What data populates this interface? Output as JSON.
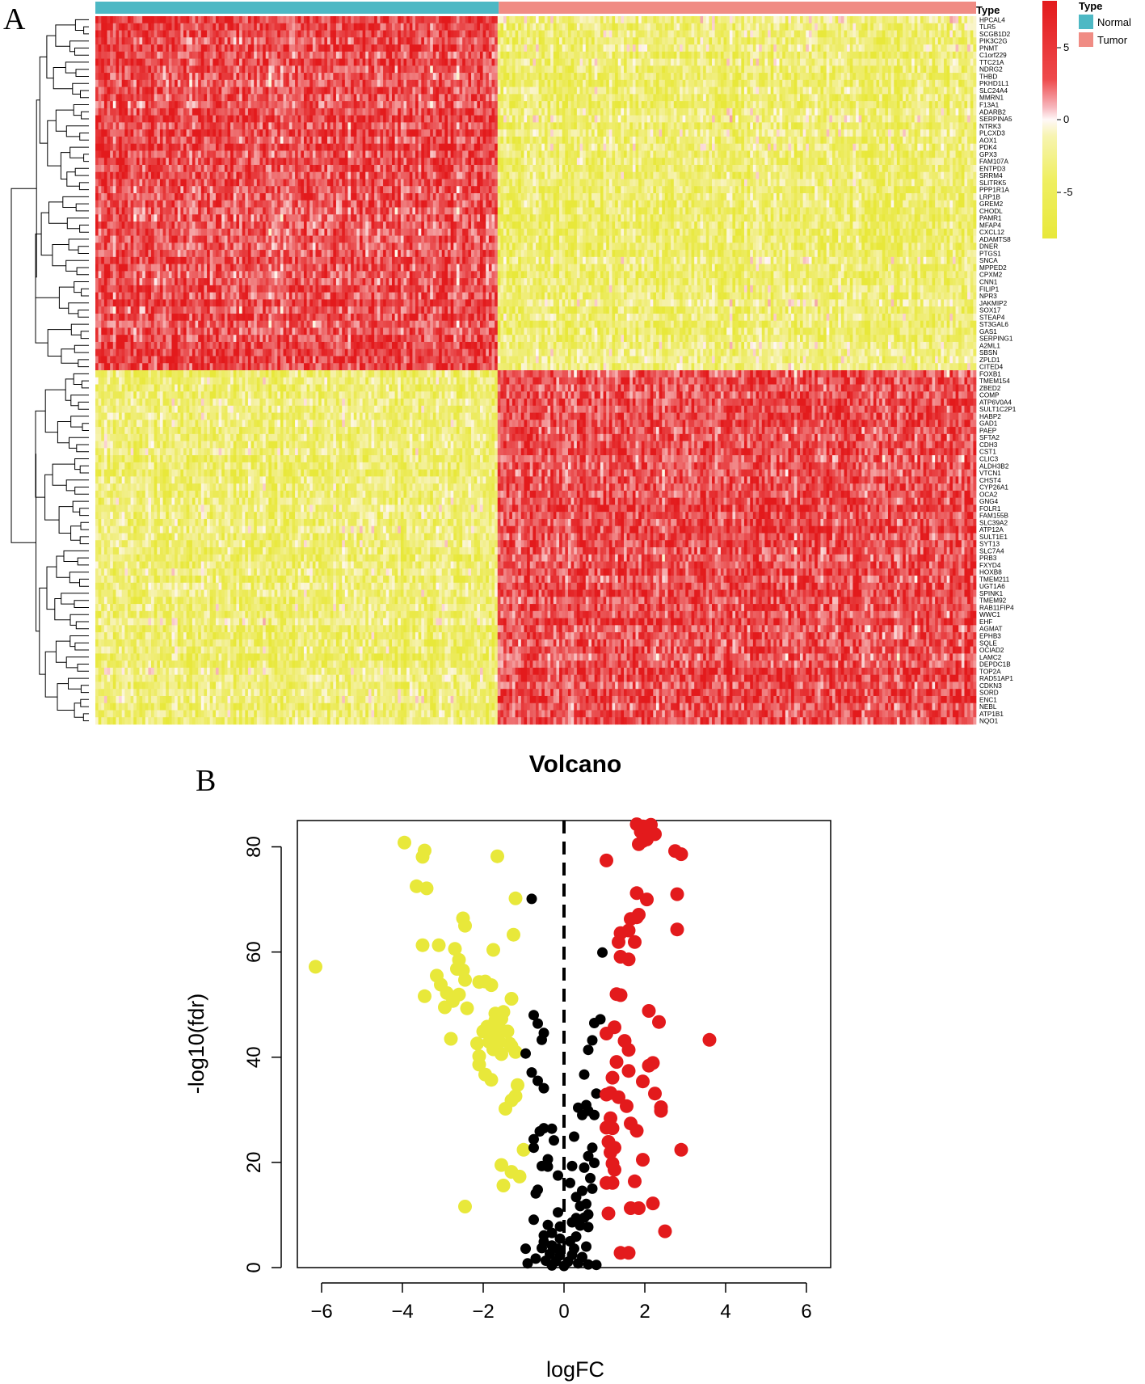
{
  "panels": {
    "a": "A",
    "b": "B"
  },
  "heatmap": {
    "annotation_title": "Type",
    "legend_title": "Type",
    "groups": [
      {
        "name": "Normal",
        "color": "#4DB8C4"
      },
      {
        "name": "Tumor",
        "color": "#F08C84"
      }
    ],
    "color_scale": {
      "min": -8,
      "max": 8,
      "ticks": [
        "5",
        "0",
        "-5"
      ],
      "low_color": "#E8E83A",
      "mid_color": "#FFF8F8",
      "high_color": "#E31A1C"
    },
    "sample_split_fraction": 0.458,
    "upregulated_in_normal": [
      "HPCAL4",
      "TLR5",
      "SCGB1D2",
      "PIK3C2G",
      "PNMT",
      "C1orf229",
      "TTC21A",
      "NDRG2",
      "THBD",
      "PKHD1L1",
      "SLC24A4",
      "MMRN1",
      "F13A1",
      "ADARB2",
      "SERPINA5",
      "NTRK3",
      "PLCXD3",
      "AOX1",
      "PDK4",
      "GPX3",
      "FAM107A",
      "ENTPD3",
      "SRRM4",
      "SLITRK5",
      "PPP1R1A",
      "LRP1B",
      "GREM2",
      "CHODL",
      "PAMR1",
      "MFAP4",
      "CXCL12",
      "ADAMTS8",
      "DNER",
      "PTGS1",
      "SNCA",
      "MPPED2",
      "CPXM2",
      "CNN1",
      "FILIP1",
      "NPR3",
      "JAKMIP2",
      "SOX17",
      "STEAP4",
      "ST3GAL6",
      "GAS1",
      "SERPING1",
      "A2ML1",
      "SBSN",
      "ZPLD1",
      "CITED4"
    ],
    "upregulated_in_tumor": [
      "FOXB1",
      "TMEM154",
      "ZBED2",
      "COMP",
      "ATP6V0A4",
      "SULT1C2P1",
      "HABP2",
      "GAD1",
      "PAEP",
      "SFTA2",
      "CDH3",
      "CST1",
      "CLIC3",
      "ALDH3B2",
      "VTCN1",
      "CHST4",
      "CYP26A1",
      "OCA2",
      "GNG4",
      "FOLR1",
      "FAM155B",
      "SLC39A2",
      "ATP12A",
      "SULT1E1",
      "SYT13",
      "SLC7A4",
      "PRB3",
      "FXYD4",
      "HOXB8",
      "TMEM211",
      "UGT1A6",
      "SPINK1",
      "TMEM92",
      "RAB11FIP4",
      "WWC1",
      "EHF",
      "AGMAT",
      "EPHB3",
      "SQLE",
      "OCIAD2",
      "LAMC2",
      "DEPDC1B",
      "TOP2A",
      "RAD51AP1",
      "CDKN3",
      "SORD",
      "ENC1",
      "NEBL",
      "ATP1B1",
      "NQO1"
    ]
  },
  "chart_data": {
    "type": "scatter",
    "title": "Volcano",
    "xlabel": "logFC",
    "ylabel": "-log10(fdr)",
    "xlim": [
      -6.6,
      6.6
    ],
    "ylim": [
      0,
      85
    ],
    "xticks": [
      -6,
      -4,
      -2,
      0,
      2,
      4,
      6
    ],
    "yticks": [
      0,
      20,
      40,
      60,
      80
    ],
    "cutoff_line_x": 0,
    "series": [
      {
        "name": "down",
        "color": "#E8E83A",
        "points": [
          [
            -6.15,
            57.2
          ],
          [
            -3.95,
            80.8
          ],
          [
            -3.45,
            79.3
          ],
          [
            -3.5,
            78.1
          ],
          [
            -1.65,
            78.2
          ],
          [
            -3.65,
            72.5
          ],
          [
            -3.4,
            72.1
          ],
          [
            -1.2,
            70.2
          ],
          [
            -2.5,
            66.4
          ],
          [
            -2.45,
            65.0
          ],
          [
            -1.25,
            63.3
          ],
          [
            -3.5,
            61.3
          ],
          [
            -3.1,
            61.3
          ],
          [
            -2.7,
            60.6
          ],
          [
            -1.75,
            60.4
          ],
          [
            -2.6,
            58.5
          ],
          [
            -2.65,
            56.8
          ],
          [
            -2.5,
            56.5
          ],
          [
            -3.15,
            55.5
          ],
          [
            -3.05,
            53.8
          ],
          [
            -2.9,
            52.2
          ],
          [
            -2.1,
            54.3
          ],
          [
            -1.95,
            54.4
          ],
          [
            -1.8,
            53.7
          ],
          [
            -2.45,
            54.7
          ],
          [
            -2.6,
            51.9
          ],
          [
            -2.75,
            50.7
          ],
          [
            -3.45,
            51.6
          ],
          [
            -2.95,
            49.5
          ],
          [
            -2.4,
            49.3
          ],
          [
            -1.7,
            48.3
          ],
          [
            -1.5,
            48.6
          ],
          [
            -1.3,
            51.1
          ],
          [
            -1.55,
            47.3
          ],
          [
            -1.7,
            47.0
          ],
          [
            -1.9,
            45.8
          ],
          [
            -2.0,
            44.9
          ],
          [
            -1.75,
            44.8
          ],
          [
            -1.55,
            45.1
          ],
          [
            -1.4,
            44.9
          ],
          [
            -2.8,
            43.5
          ],
          [
            -2.15,
            42.6
          ],
          [
            -1.85,
            42.9
          ],
          [
            -1.6,
            42.9
          ],
          [
            -1.35,
            42.6
          ],
          [
            -1.75,
            41.5
          ],
          [
            -1.55,
            40.6
          ],
          [
            -1.3,
            42.1
          ],
          [
            -1.2,
            41.0
          ],
          [
            -2.1,
            40.2
          ],
          [
            -2.1,
            38.6
          ],
          [
            -1.95,
            36.7
          ],
          [
            -1.8,
            35.7
          ],
          [
            -1.15,
            34.7
          ],
          [
            -1.2,
            32.6
          ],
          [
            -1.3,
            31.8
          ],
          [
            -1.45,
            30.2
          ],
          [
            -1.0,
            22.4
          ],
          [
            -1.55,
            19.5
          ],
          [
            -1.3,
            18.2
          ],
          [
            -1.1,
            17.3
          ],
          [
            -1.5,
            15.6
          ],
          [
            -2.45,
            11.6
          ]
        ]
      },
      {
        "name": "not-significant",
        "color": "#000000",
        "points": [
          [
            -0.8,
            70.1
          ],
          [
            0.95,
            59.9
          ],
          [
            -0.75,
            48.0
          ],
          [
            -0.65,
            46.4
          ],
          [
            0.9,
            47.2
          ],
          [
            0.75,
            46.5
          ],
          [
            -0.5,
            44.6
          ],
          [
            -0.55,
            43.3
          ],
          [
            0.7,
            43.2
          ],
          [
            -0.95,
            40.7
          ],
          [
            0.6,
            41.4
          ],
          [
            -0.8,
            37.1
          ],
          [
            0.5,
            36.7
          ],
          [
            -0.65,
            35.5
          ],
          [
            -0.5,
            34.1
          ],
          [
            0.8,
            33.1
          ],
          [
            0.55,
            30.9
          ],
          [
            0.35,
            30.4
          ],
          [
            0.6,
            29.8
          ],
          [
            0.45,
            29.0
          ],
          [
            0.75,
            29.0
          ],
          [
            -0.3,
            26.4
          ],
          [
            -0.5,
            26.5
          ],
          [
            -0.6,
            25.9
          ],
          [
            -0.75,
            24.4
          ],
          [
            -0.25,
            24.2
          ],
          [
            0.25,
            24.9
          ],
          [
            -0.75,
            22.8
          ],
          [
            0.7,
            22.8
          ],
          [
            -0.4,
            20.6
          ],
          [
            0.6,
            21.2
          ],
          [
            -0.55,
            19.3
          ],
          [
            -0.4,
            19.2
          ],
          [
            0.2,
            19.3
          ],
          [
            0.75,
            19.9
          ],
          [
            0.5,
            19.0
          ],
          [
            -0.15,
            17.5
          ],
          [
            0.65,
            17.0
          ],
          [
            0.15,
            16.1
          ],
          [
            -0.65,
            14.8
          ],
          [
            -0.7,
            14.1
          ],
          [
            0.45,
            14.6
          ],
          [
            0.7,
            15.0
          ],
          [
            0.3,
            13.4
          ],
          [
            0.55,
            12.1
          ],
          [
            0.4,
            11.7
          ],
          [
            -0.15,
            10.5
          ],
          [
            0.6,
            10.1
          ],
          [
            -0.75,
            9.1
          ],
          [
            0.3,
            9.4
          ],
          [
            0.5,
            9.5
          ],
          [
            0.2,
            8.6
          ],
          [
            -0.4,
            8.1
          ],
          [
            -0.1,
            7.8
          ],
          [
            0.4,
            8.0
          ],
          [
            0.6,
            7.7
          ],
          [
            -0.5,
            6.1
          ],
          [
            -0.3,
            6.6
          ],
          [
            -0.1,
            5.5
          ],
          [
            0.3,
            5.9
          ],
          [
            0.15,
            5.0
          ],
          [
            -0.5,
            4.9
          ],
          [
            -0.3,
            4.2
          ],
          [
            -0.55,
            3.7
          ],
          [
            -0.15,
            3.6
          ],
          [
            0.25,
            3.6
          ],
          [
            0.55,
            4.0
          ],
          [
            -0.95,
            3.6
          ],
          [
            -0.35,
            2.6
          ],
          [
            -0.1,
            2.3
          ],
          [
            0.2,
            2.4
          ],
          [
            0.45,
            2.0
          ],
          [
            -0.7,
            1.7
          ],
          [
            -0.45,
            1.3
          ],
          [
            -0.2,
            1.2
          ],
          [
            0.1,
            1.1
          ],
          [
            0.35,
            0.8
          ],
          [
            0.6,
            0.6
          ],
          [
            0.8,
            0.5
          ],
          [
            -0.9,
            0.8
          ],
          [
            -0.3,
            0.4
          ],
          [
            0.0,
            0.3
          ]
        ]
      },
      {
        "name": "up",
        "color": "#E31A1C",
        "points": [
          [
            1.8,
            84.3
          ],
          [
            1.95,
            83.9
          ],
          [
            2.15,
            84.2
          ],
          [
            1.9,
            82.9
          ],
          [
            2.15,
            82.7
          ],
          [
            2.25,
            82.4
          ],
          [
            1.95,
            81.1
          ],
          [
            2.05,
            81.4
          ],
          [
            1.85,
            80.5
          ],
          [
            2.75,
            79.2
          ],
          [
            2.9,
            78.6
          ],
          [
            1.05,
            77.4
          ],
          [
            1.8,
            71.2
          ],
          [
            2.05,
            70.0
          ],
          [
            2.8,
            71.0
          ],
          [
            1.65,
            66.3
          ],
          [
            1.8,
            66.6
          ],
          [
            1.85,
            67.1
          ],
          [
            1.6,
            64.1
          ],
          [
            1.4,
            63.6
          ],
          [
            1.35,
            61.9
          ],
          [
            1.75,
            61.9
          ],
          [
            2.8,
            64.3
          ],
          [
            1.4,
            59.1
          ],
          [
            1.6,
            58.6
          ],
          [
            1.3,
            52.0
          ],
          [
            1.4,
            51.8
          ],
          [
            2.1,
            48.8
          ],
          [
            2.35,
            46.7
          ],
          [
            1.25,
            45.7
          ],
          [
            1.05,
            44.5
          ],
          [
            3.6,
            43.3
          ],
          [
            1.5,
            43.1
          ],
          [
            1.6,
            41.4
          ],
          [
            1.3,
            39.1
          ],
          [
            1.2,
            36.1
          ],
          [
            1.6,
            37.4
          ],
          [
            2.2,
            38.9
          ],
          [
            2.1,
            38.4
          ],
          [
            1.95,
            35.4
          ],
          [
            1.15,
            33.2
          ],
          [
            1.05,
            32.9
          ],
          [
            1.35,
            32.4
          ],
          [
            2.25,
            33.1
          ],
          [
            1.55,
            30.7
          ],
          [
            2.4,
            30.5
          ],
          [
            2.4,
            29.8
          ],
          [
            1.15,
            28.4
          ],
          [
            1.05,
            26.6
          ],
          [
            1.2,
            26.5
          ],
          [
            1.65,
            27.4
          ],
          [
            1.8,
            26.0
          ],
          [
            1.1,
            23.9
          ],
          [
            1.25,
            22.8
          ],
          [
            1.15,
            21.9
          ],
          [
            2.9,
            22.4
          ],
          [
            1.95,
            20.5
          ],
          [
            1.2,
            19.8
          ],
          [
            1.25,
            18.6
          ],
          [
            1.05,
            16.1
          ],
          [
            1.2,
            16.1
          ],
          [
            1.75,
            16.4
          ],
          [
            1.65,
            11.3
          ],
          [
            1.85,
            11.3
          ],
          [
            2.2,
            12.2
          ],
          [
            1.1,
            10.3
          ],
          [
            2.5,
            6.9
          ],
          [
            1.4,
            2.8
          ],
          [
            1.6,
            2.8
          ]
        ]
      }
    ]
  }
}
